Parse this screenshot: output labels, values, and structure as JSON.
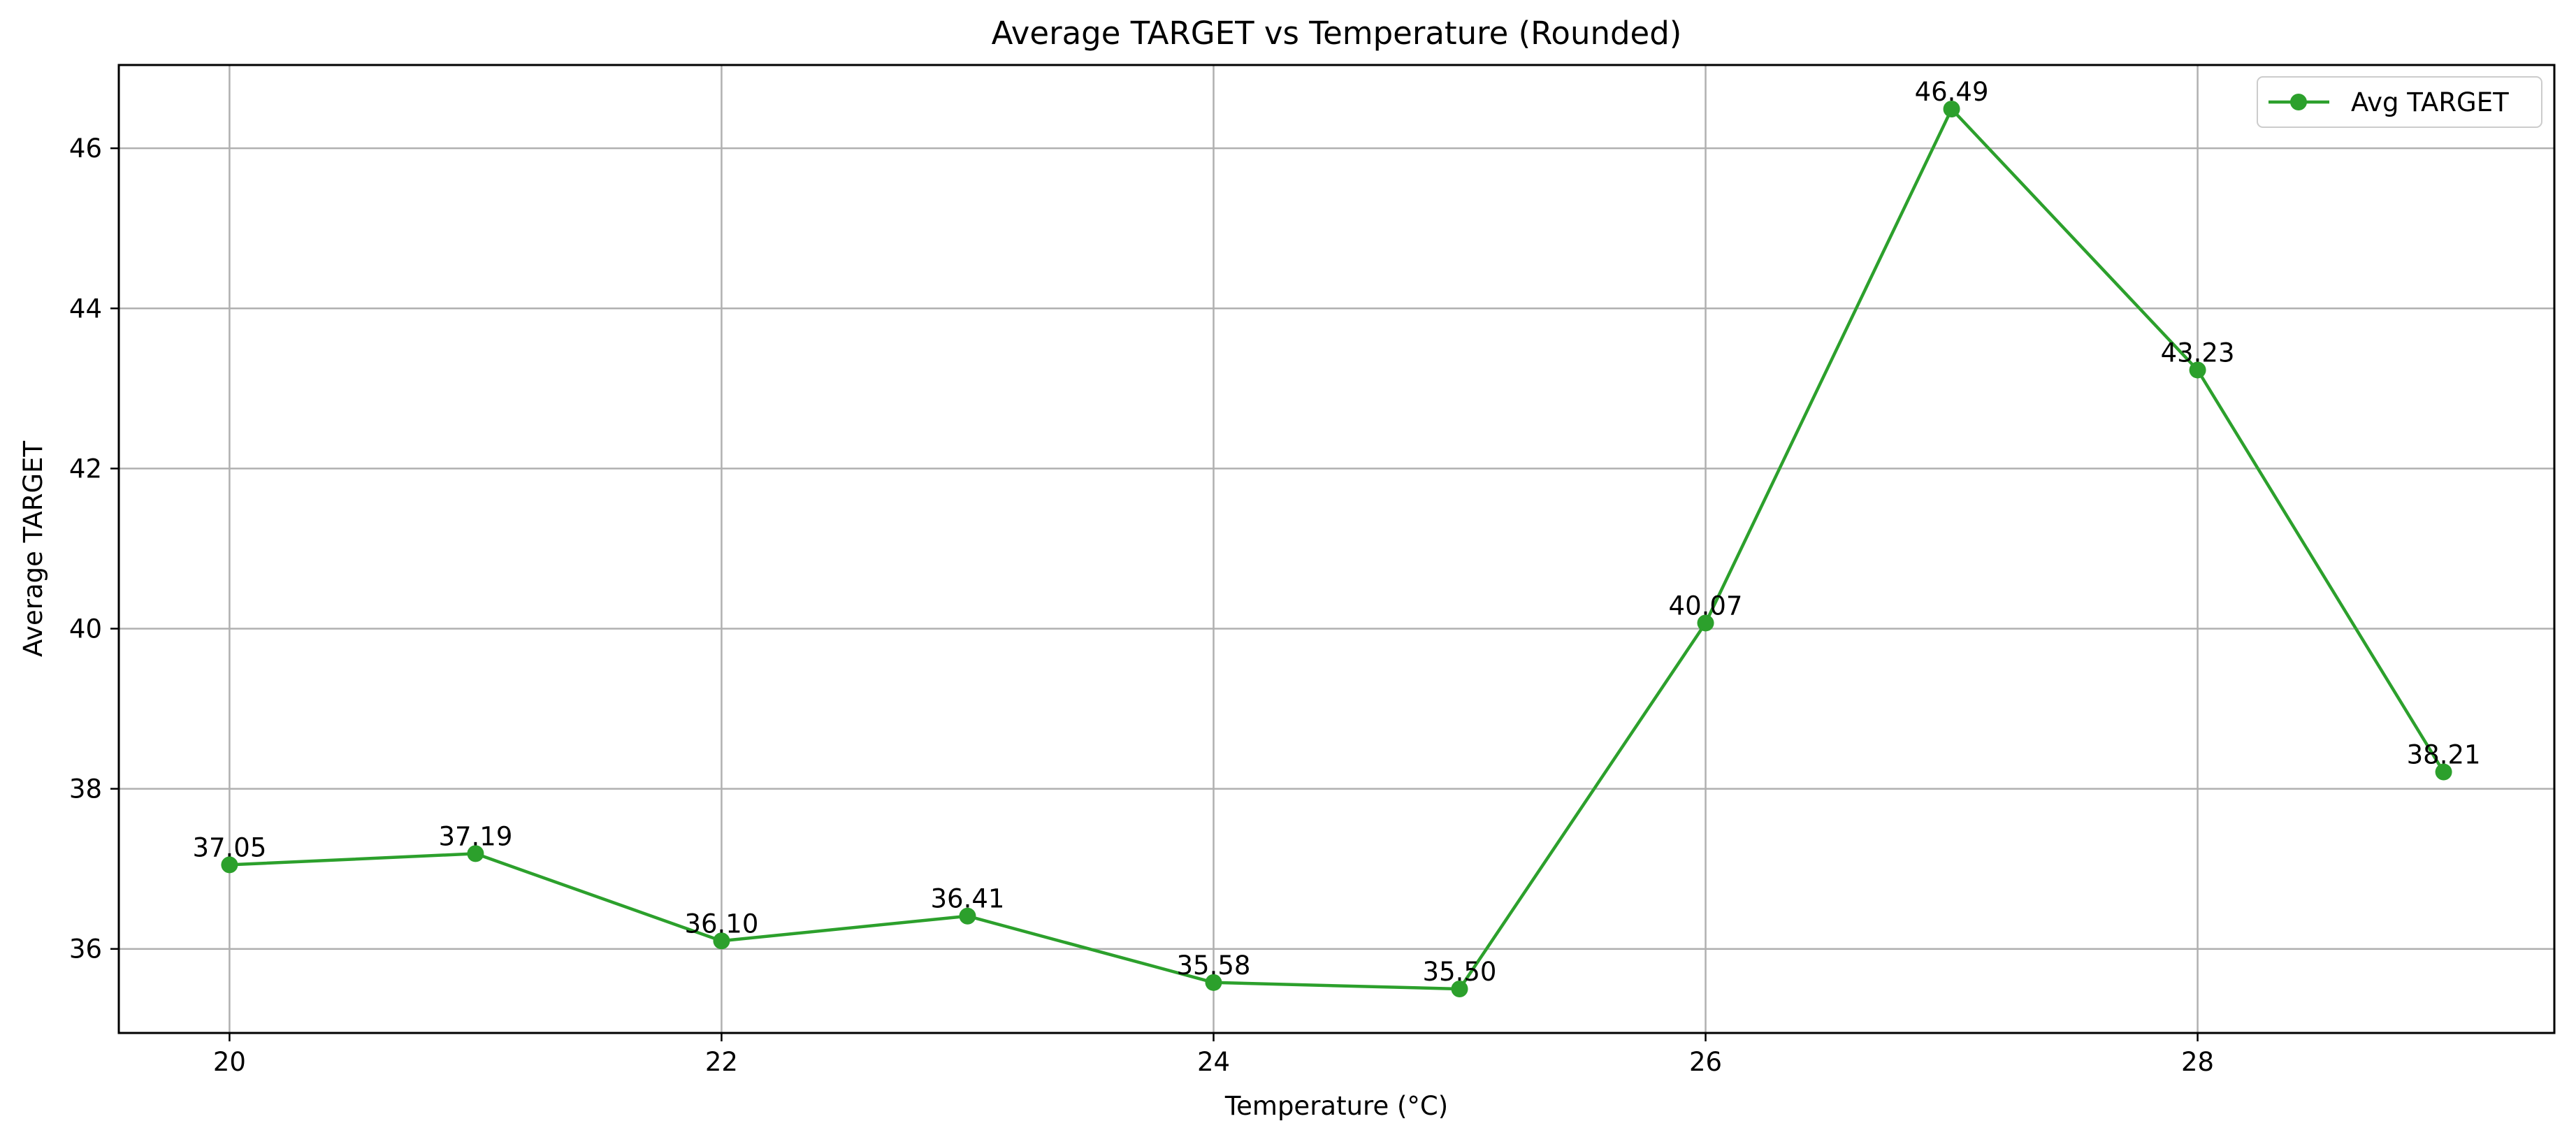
{
  "chart_data": {
    "type": "line",
    "title": "Average TARGET vs Temperature (Rounded)",
    "xlabel": "Temperature (°C)",
    "ylabel": "Average TARGET",
    "xlim": [
      19.55,
      29.45
    ],
    "ylim": [
      34.95,
      47.04
    ],
    "xticks": [
      20,
      22,
      24,
      26,
      28
    ],
    "xtick_labels": [
      "20",
      "22",
      "24",
      "26",
      "28"
    ],
    "yticks": [
      36,
      38,
      40,
      42,
      44,
      46
    ],
    "ytick_labels": [
      "36",
      "38",
      "40",
      "42",
      "44",
      "46"
    ],
    "grid": true,
    "legend_position": "upper-right",
    "color": "#2ca02c",
    "series": [
      {
        "name": "Avg TARGET",
        "x": [
          20,
          21,
          22,
          23,
          24,
          25,
          26,
          27,
          28,
          29
        ],
        "y": [
          37.05,
          37.19,
          36.1,
          36.41,
          35.58,
          35.5,
          40.07,
          46.49,
          43.23,
          38.21
        ],
        "labels": [
          "37.05",
          "37.19",
          "36.10",
          "36.41",
          "35.58",
          "35.50",
          "40.07",
          "46.49",
          "43.23",
          "38.21"
        ]
      }
    ]
  }
}
